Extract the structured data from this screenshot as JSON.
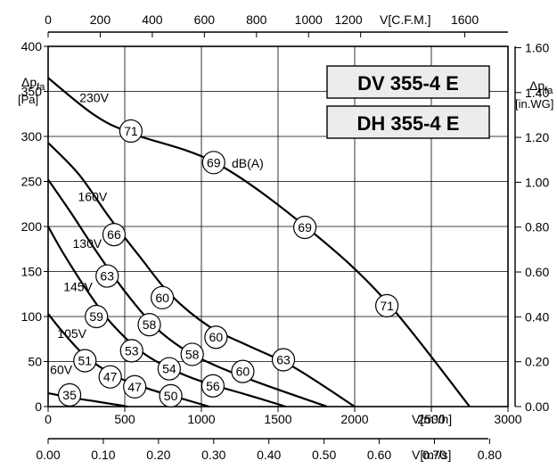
{
  "models": [
    "DV 355-4 E",
    "DH 355-4 E"
  ],
  "chart_data": {
    "type": "line",
    "x_axis_bottom": {
      "label": "V[m³/h]",
      "min": 0,
      "max": 3000,
      "ticks": [
        0,
        500,
        1000,
        1500,
        2000,
        2500,
        3000
      ]
    },
    "x_axis_top": {
      "label": "V[C.F.M.]",
      "min": 0,
      "max": 1765.7,
      "ticks": [
        0,
        200,
        400,
        600,
        800,
        1000,
        1200,
        1600
      ]
    },
    "x_axis_bottom2": {
      "label": "V[m³/s]",
      "min": 0,
      "max": 0.8333,
      "ticks": [
        "0.00",
        "0.10",
        "0.20",
        "0.30",
        "0.40",
        "0.50",
        "0.60",
        "0.70",
        "0.80"
      ]
    },
    "y_axis_left": {
      "label_symbol": "Δp",
      "label_sub": "fa",
      "label_unit": "[Pa]",
      "min": 0,
      "max": 400,
      "ticks": [
        0,
        50,
        100,
        150,
        200,
        250,
        300,
        350,
        400
      ]
    },
    "y_axis_right": {
      "label_symbol": "Δp",
      "label_sub": "fa",
      "label_unit": "[in.WG]",
      "min": 0,
      "max": 1.6058,
      "ticks": [
        "0.00",
        "0.20",
        "0.40",
        "0.60",
        "0.80",
        "1.00",
        "1.20",
        "1.40",
        "1.60"
      ]
    },
    "grid": true,
    "noise_unit": "dB(A)",
    "series": [
      {
        "name": "230V",
        "points": [
          [
            0,
            365
          ],
          [
            300,
            324
          ],
          [
            550,
            303
          ],
          [
            1100,
            270
          ],
          [
            1700,
            197
          ],
          [
            2200,
            118
          ],
          [
            2750,
            0
          ]
        ],
        "label_at": [
          300,
          338
        ],
        "markers": [
          {
            "x": 540,
            "y": 306,
            "value": 71
          },
          {
            "x": 1080,
            "y": 271,
            "value": 69
          },
          {
            "x": 1675,
            "y": 199,
            "value": 69
          },
          {
            "x": 2210,
            "y": 112,
            "value": 71
          }
        ]
      },
      {
        "name": "160V",
        "points": [
          [
            0,
            293
          ],
          [
            200,
            258
          ],
          [
            400,
            210
          ],
          [
            600,
            166
          ],
          [
            800,
            124
          ],
          [
            1050,
            89
          ],
          [
            1300,
            68
          ],
          [
            1600,
            44
          ],
          [
            2000,
            0
          ]
        ],
        "label_at": [
          290,
          228
        ],
        "markers": [
          {
            "x": 430,
            "y": 191,
            "value": 66
          },
          {
            "x": 745,
            "y": 121,
            "value": 60
          },
          {
            "x": 1095,
            "y": 77,
            "value": 60
          },
          {
            "x": 1535,
            "y": 52,
            "value": 63
          }
        ]
      },
      {
        "name": "130V",
        "points": [
          [
            0,
            252
          ],
          [
            150,
            215
          ],
          [
            300,
            176
          ],
          [
            500,
            128
          ],
          [
            700,
            88
          ],
          [
            900,
            62
          ],
          [
            1100,
            45
          ],
          [
            1400,
            25
          ],
          [
            1820,
            0
          ]
        ],
        "label_at": [
          255,
          176
        ],
        "markers": [
          {
            "x": 385,
            "y": 145,
            "value": 63
          },
          {
            "x": 660,
            "y": 91,
            "value": 58
          },
          {
            "x": 940,
            "y": 58,
            "value": 58
          },
          {
            "x": 1270,
            "y": 39,
            "value": 60
          }
        ]
      },
      {
        "name": "145V",
        "points": [
          [
            0,
            200
          ],
          [
            100,
            170
          ],
          [
            250,
            130
          ],
          [
            400,
            95
          ],
          [
            600,
            62
          ],
          [
            800,
            42
          ],
          [
            1000,
            28
          ],
          [
            1300,
            13
          ],
          [
            1550,
            0
          ]
        ],
        "label_at": [
          195,
          128
        ],
        "markers": [
          {
            "x": 315,
            "y": 100,
            "value": 59
          },
          {
            "x": 545,
            "y": 62,
            "value": 53
          },
          {
            "x": 790,
            "y": 42,
            "value": 54
          },
          {
            "x": 1075,
            "y": 23,
            "value": 56
          }
        ]
      },
      {
        "name": "105V",
        "points": [
          [
            0,
            103
          ],
          [
            100,
            82
          ],
          [
            250,
            55
          ],
          [
            450,
            33
          ],
          [
            650,
            20
          ],
          [
            850,
            10
          ],
          [
            1050,
            0
          ]
        ],
        "label_at": [
          155,
          76
        ],
        "markers": [
          {
            "x": 240,
            "y": 51,
            "value": 51
          },
          {
            "x": 405,
            "y": 33,
            "value": 47
          },
          {
            "x": 565,
            "y": 22,
            "value": 47
          },
          {
            "x": 800,
            "y": 12,
            "value": 50
          }
        ]
      },
      {
        "name": "60V",
        "points": [
          [
            0,
            15
          ],
          [
            150,
            10
          ],
          [
            300,
            6
          ],
          [
            450,
            2
          ],
          [
            520,
            0
          ]
        ],
        "label_at": [
          85,
          36
        ],
        "markers": [
          {
            "x": 140,
            "y": 13,
            "value": 35
          }
        ]
      }
    ]
  }
}
